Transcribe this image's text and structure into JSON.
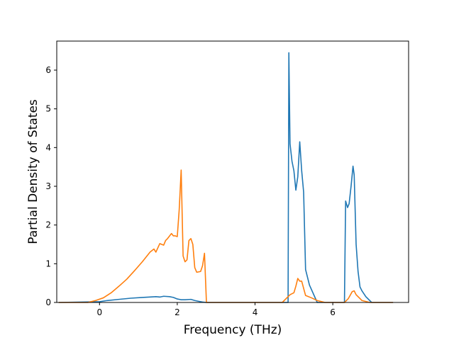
{
  "chart_data": {
    "type": "line",
    "title": "",
    "xlabel": "Frequency (THz)",
    "ylabel": "Partial Density of States",
    "xlim": [
      -1.1,
      7.95
    ],
    "ylim": [
      0,
      6.75
    ],
    "xticks": [
      0,
      2,
      4,
      6
    ],
    "yticks": [
      0,
      1,
      2,
      3,
      4,
      5,
      6
    ],
    "grid": false,
    "legend": "none",
    "series": [
      {
        "color": "#1f77b4",
        "x": [
          -1.05,
          0.0,
          0.2,
          0.5,
          0.8,
          1.1,
          1.3,
          1.45,
          1.55,
          1.65,
          1.8,
          1.9,
          2.0,
          2.1,
          2.2,
          2.35,
          2.45,
          2.55,
          2.65,
          2.75,
          2.8,
          3.5,
          4.5,
          4.85,
          4.87,
          4.9,
          4.95,
          5.0,
          5.05,
          5.1,
          5.15,
          5.2,
          5.25,
          5.3,
          5.4,
          5.6,
          6.0,
          6.3,
          6.33,
          6.38,
          6.42,
          6.47,
          6.52,
          6.55,
          6.6,
          6.65,
          6.7,
          6.75,
          6.85,
          7.0,
          7.55
        ],
        "values": [
          0,
          0.02,
          0.05,
          0.08,
          0.11,
          0.13,
          0.14,
          0.15,
          0.14,
          0.16,
          0.15,
          0.13,
          0.09,
          0.07,
          0.07,
          0.08,
          0.05,
          0.03,
          0.01,
          0,
          0,
          0,
          0,
          0,
          6.45,
          4.1,
          3.65,
          3.4,
          2.9,
          3.25,
          4.15,
          3.4,
          2.85,
          0.85,
          0.45,
          0,
          0,
          0,
          2.62,
          2.45,
          2.55,
          3.0,
          3.52,
          3.3,
          1.5,
          0.8,
          0.4,
          0.3,
          0.15,
          0,
          0
        ]
      },
      {
        "color": "#ff7f0e",
        "x": [
          -1.05,
          -0.3,
          -0.1,
          0.1,
          0.3,
          0.5,
          0.7,
          0.9,
          1.1,
          1.3,
          1.4,
          1.45,
          1.55,
          1.65,
          1.7,
          1.75,
          1.85,
          1.9,
          1.95,
          2.0,
          2.05,
          2.1,
          2.15,
          2.2,
          2.25,
          2.3,
          2.35,
          2.4,
          2.45,
          2.5,
          2.6,
          2.65,
          2.7,
          2.75,
          3.5,
          4.7,
          4.9,
          5.0,
          5.05,
          5.1,
          5.15,
          5.2,
          5.3,
          5.45,
          5.6,
          5.8,
          6.3,
          6.4,
          6.5,
          6.55,
          6.6,
          6.75,
          6.95,
          7.55
        ],
        "values": [
          0,
          0,
          0.05,
          0.12,
          0.25,
          0.42,
          0.6,
          0.82,
          1.05,
          1.3,
          1.38,
          1.3,
          1.52,
          1.48,
          1.6,
          1.65,
          1.78,
          1.72,
          1.72,
          1.7,
          2.4,
          3.42,
          1.2,
          1.05,
          1.1,
          1.6,
          1.65,
          1.5,
          0.9,
          0.78,
          0.8,
          0.95,
          1.27,
          0,
          0,
          0,
          0.2,
          0.25,
          0.42,
          0.62,
          0.55,
          0.55,
          0.18,
          0.12,
          0.05,
          0,
          0,
          0.1,
          0.28,
          0.3,
          0.2,
          0.05,
          0,
          0
        ]
      }
    ]
  }
}
